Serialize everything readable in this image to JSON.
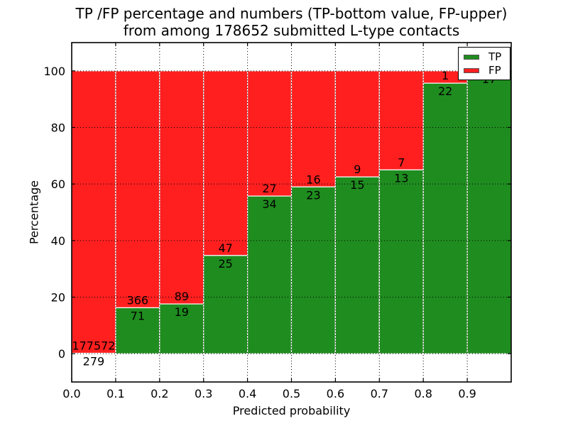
{
  "chart_data": {
    "type": "bar",
    "stacked": true,
    "title_line1": "TP /FP percentage and numbers (TP-bottom value, FP-upper)",
    "title_line2": "from among 178652 submitted L-type contacts",
    "xlabel": "Predicted probability",
    "ylabel": "Percentage",
    "total_contacts": 178652,
    "note": "Each bar is a 0.1-wide predicted-probability bin; green TP portion height = TP/(TP+FP)*100, red FP portion fills up to 100%. Numbers printed on bars are raw counts: TP below the boundary, FP above it.",
    "categories": [
      "0.0-0.1",
      "0.1-0.2",
      "0.2-0.3",
      "0.3-0.4",
      "0.4-0.5",
      "0.5-0.6",
      "0.6-0.7",
      "0.7-0.8",
      "0.8-0.9",
      "0.9-1.0"
    ],
    "series": [
      {
        "name": "TP",
        "color": "#1f8c1f",
        "counts": [
          279,
          71,
          19,
          25,
          34,
          23,
          15,
          13,
          22,
          17
        ]
      },
      {
        "name": "FP",
        "color": "#ff1f1f",
        "counts": [
          177572,
          366,
          89,
          47,
          27,
          16,
          9,
          7,
          1,
          0
        ]
      }
    ],
    "xlim": [
      0.0,
      1.0
    ],
    "ylim": [
      -10,
      110
    ],
    "xticks": {
      "values": [
        0.0,
        0.1,
        0.2,
        0.3,
        0.4,
        0.5,
        0.6,
        0.7,
        0.8,
        0.9
      ],
      "labels": [
        "0.0",
        "0.1",
        "0.2",
        "0.3",
        "0.4",
        "0.5",
        "0.6",
        "0.7",
        "0.8",
        "0.9"
      ]
    },
    "yticks": {
      "values": [
        0,
        20,
        40,
        60,
        80,
        100
      ],
      "labels": [
        "0",
        "20",
        "40",
        "60",
        "80",
        "100"
      ]
    },
    "grid": "dotted",
    "legend": {
      "position": "upper right",
      "entries": [
        {
          "label": "TP",
          "color": "#1f8c1f"
        },
        {
          "label": "FP",
          "color": "#ff1f1f"
        }
      ]
    }
  }
}
